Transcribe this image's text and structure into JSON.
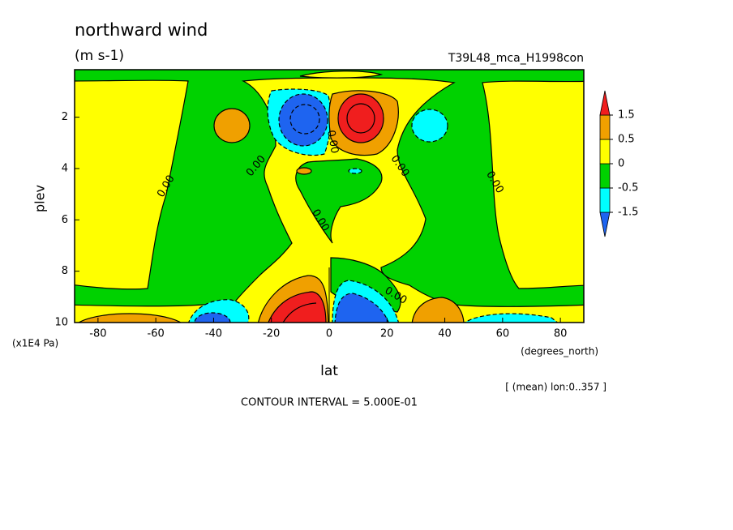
{
  "chart_data": {
    "type": "contour",
    "title": "northward wind",
    "subtitle": "(m s-1)",
    "experiment": "T39L48_mca_H1998con",
    "xlabel": "lat",
    "ylabel": "plev",
    "xunit": "(degrees_north)",
    "yunit": "(x1E4 Pa)",
    "note": "[ (mean) lon:0..357 ]",
    "contour_interval": "CONTOUR INTERVAL = 5.000E-01",
    "xlim": [
      -88.1,
      88.1
    ],
    "xticks": [
      -80,
      -60,
      -40,
      -20,
      0,
      20,
      40,
      60,
      80
    ],
    "ylim": [
      10,
      0.15
    ],
    "yticks": [
      2,
      4,
      6,
      8,
      10
    ],
    "levels": [
      -1.5,
      -0.5,
      0,
      0.5,
      1.5
    ],
    "colors": [
      "#1e64f0",
      "#00ffff",
      "#00d200",
      "#ffff00",
      "#f0a000",
      "#f01e1e"
    ],
    "contour_labels": [
      "0.00",
      "0.00",
      "0.00",
      "0.00",
      "0.00",
      "0.00",
      "0.00"
    ]
  }
}
